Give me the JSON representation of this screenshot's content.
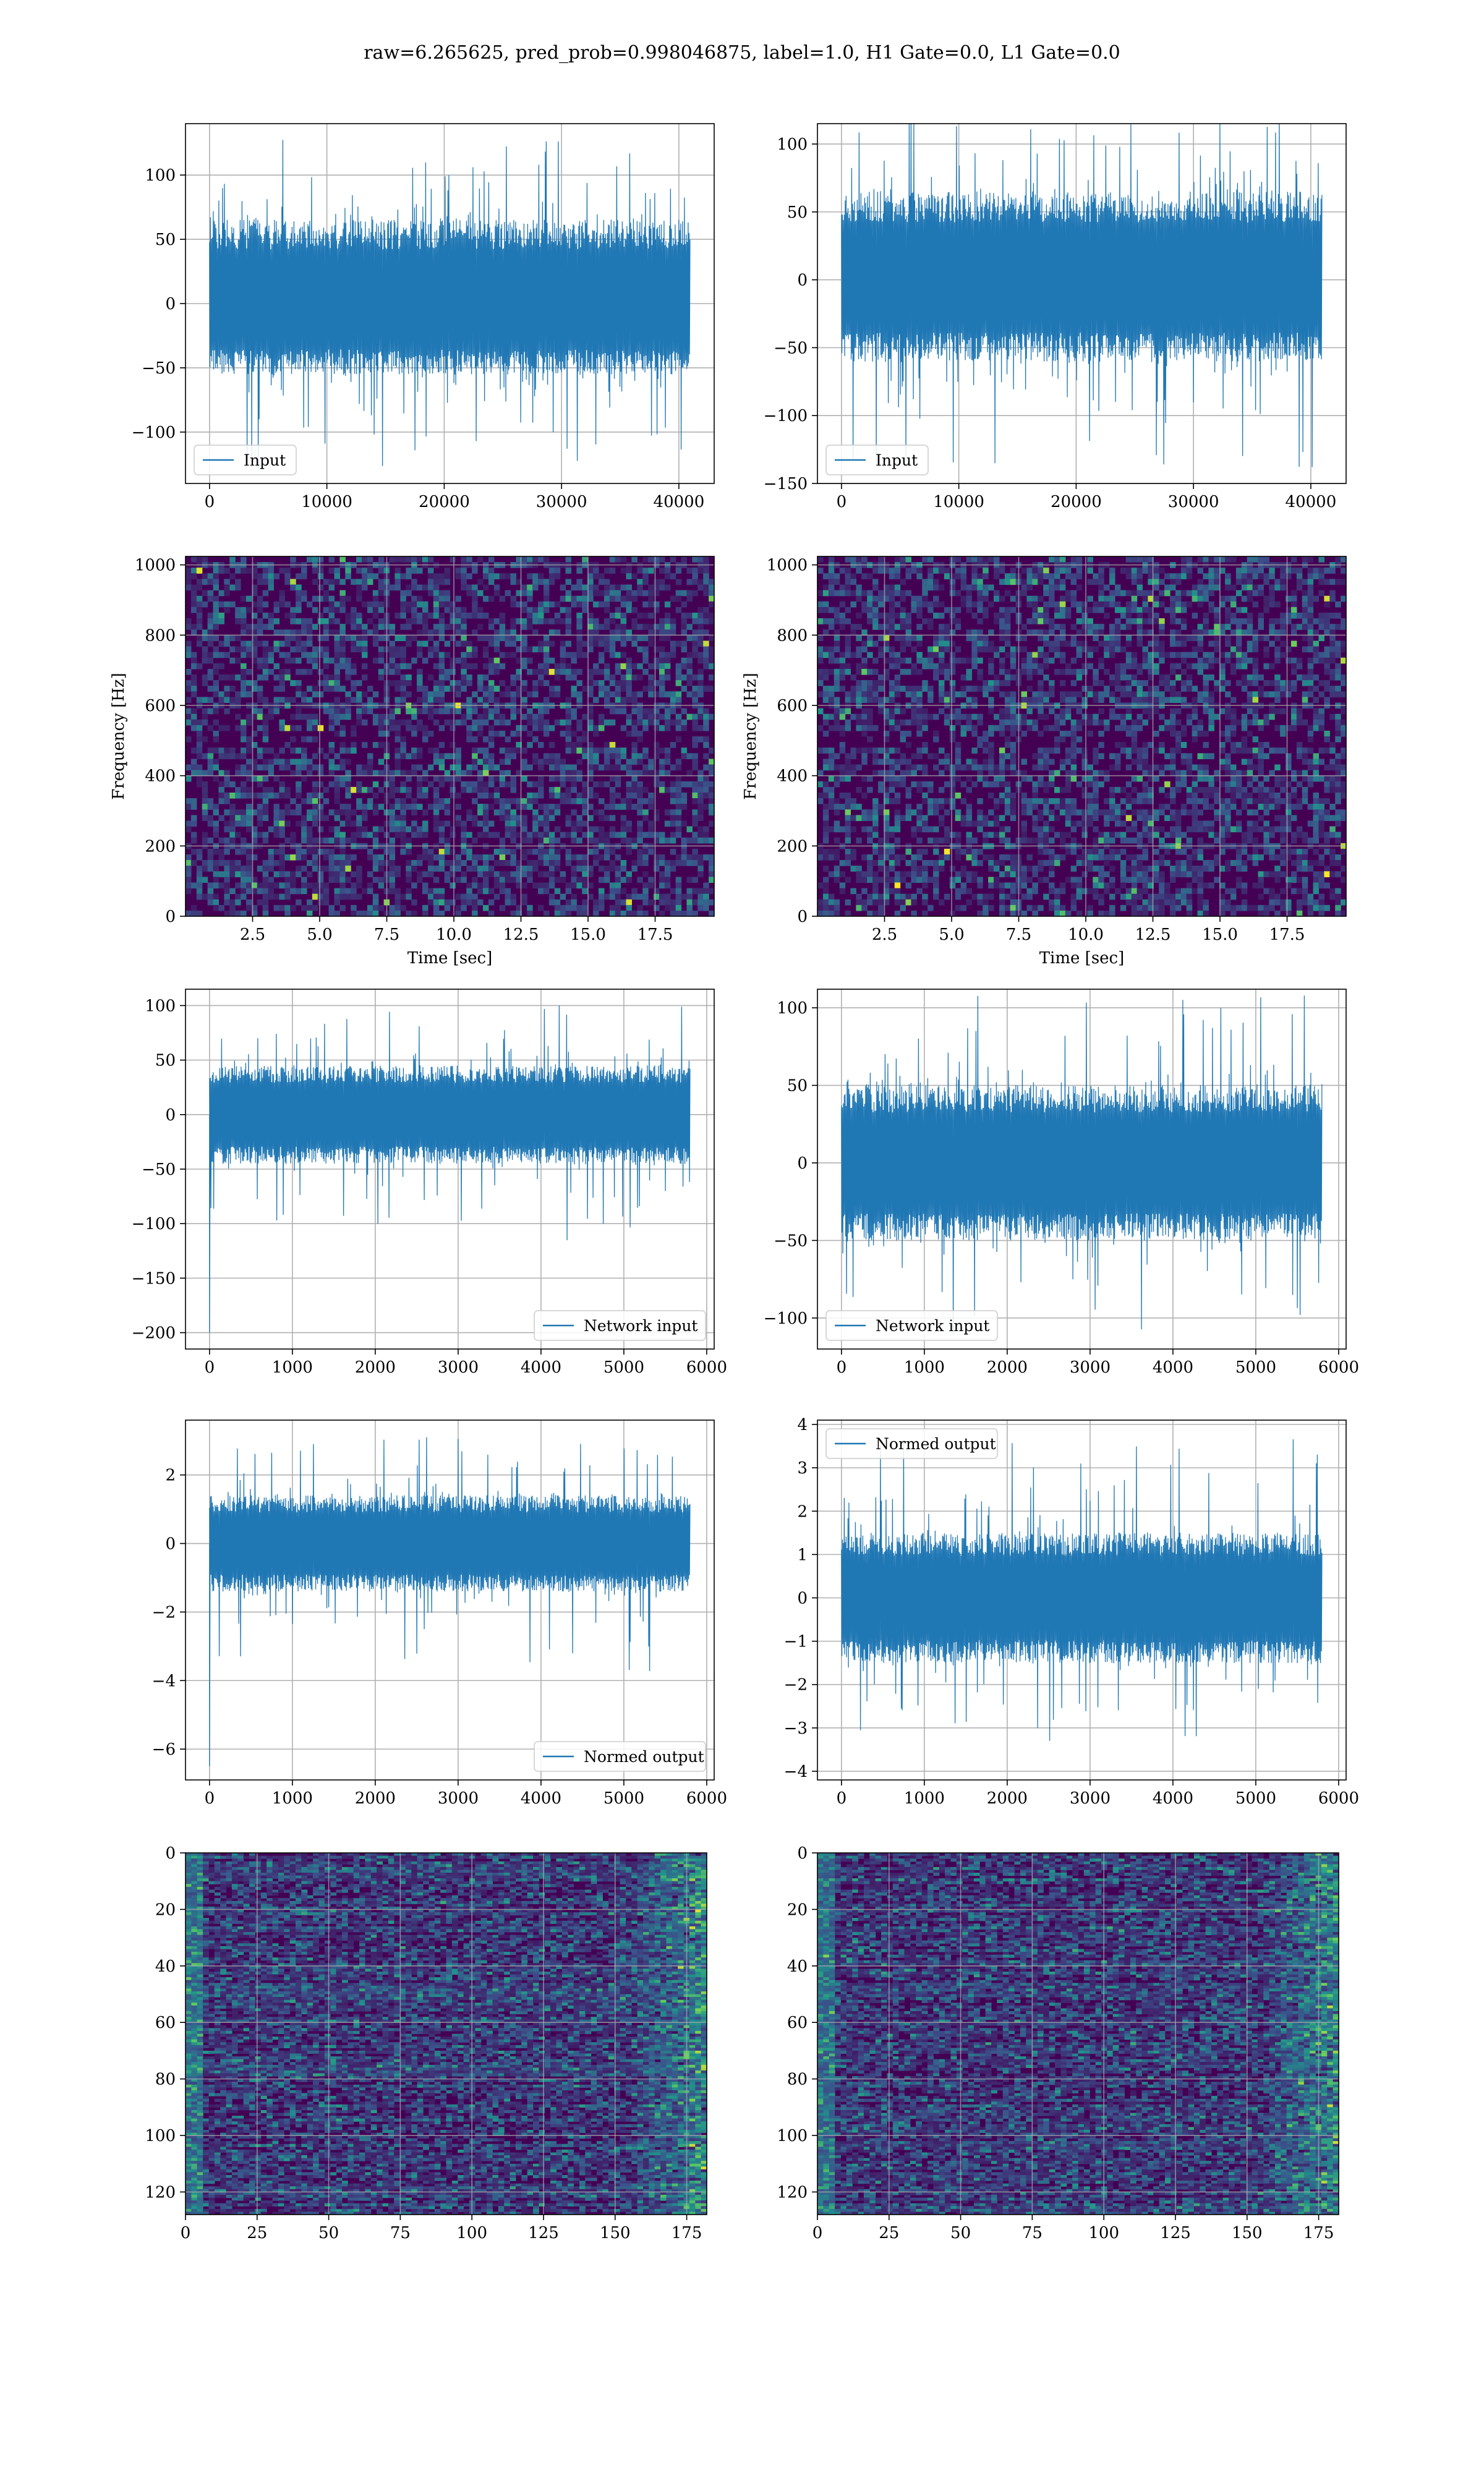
{
  "figure": {
    "suptitle": "raw=6.265625, pred_prob=0.998046875, label=1.0, H1 Gate=0.0, L1 Gate=0.0",
    "colors": {
      "line": "#1f77b4",
      "grid": "#b0b0b0",
      "viridis_dark": "#440154",
      "viridis_mid": "#31688e",
      "viridis_green": "#35b779",
      "viridis_yellow": "#fde725"
    }
  },
  "chart_data": [
    {
      "id": "left_input",
      "type": "line",
      "x_range": [
        0,
        40960
      ],
      "xlim": [
        -2048,
        43008
      ],
      "ylim": [
        -140,
        140
      ],
      "x_ticks": [
        "0",
        "10000",
        "20000",
        "30000",
        "40000"
      ],
      "x_tick_values": [
        0,
        10000,
        20000,
        30000,
        40000
      ],
      "y_ticks": [
        "100",
        "50",
        "0",
        "−50",
        "−100"
      ],
      "y_tick_values": [
        100,
        50,
        0,
        -50,
        -100
      ],
      "series": [
        {
          "name": "Input",
          "band": [
            -55,
            65
          ],
          "peaks": [
            -130,
            130
          ],
          "spike_rate": 0.12,
          "seed": 11,
          "initial_spike": null
        }
      ],
      "legend": "lower left",
      "grid": true,
      "xlabel": "",
      "ylabel": ""
    },
    {
      "id": "right_input",
      "type": "line",
      "x_range": [
        0,
        40960
      ],
      "xlim": [
        -2048,
        43008
      ],
      "ylim": [
        -150,
        115
      ],
      "x_ticks": [
        "0",
        "10000",
        "20000",
        "30000",
        "40000"
      ],
      "x_tick_values": [
        0,
        10000,
        20000,
        30000,
        40000
      ],
      "y_ticks": [
        "100",
        "50",
        "0",
        "−50",
        "−100",
        "−150"
      ],
      "y_tick_values": [
        100,
        50,
        0,
        -50,
        -100,
        -150
      ],
      "series": [
        {
          "name": "Input",
          "band": [
            -60,
            65
          ],
          "peaks": [
            -138,
            127
          ],
          "spike_rate": 0.12,
          "seed": 23,
          "initial_spike": null
        }
      ],
      "legend": "lower left",
      "grid": true,
      "xlabel": "",
      "ylabel": ""
    },
    {
      "id": "left_spectrogram",
      "type": "heatmap",
      "xlim": [
        0,
        19.7
      ],
      "ylim": [
        0,
        1024
      ],
      "x_ticks": [
        "2.5",
        "5.0",
        "7.5",
        "10.0",
        "12.5",
        "15.0",
        "17.5"
      ],
      "x_tick_values": [
        2.5,
        5,
        7.5,
        10,
        12.5,
        15,
        17.5
      ],
      "y_ticks": [
        "1000",
        "800",
        "600",
        "400",
        "200",
        "0"
      ],
      "y_tick_values": [
        1000,
        800,
        600,
        400,
        200,
        0
      ],
      "xlabel": "Time [sec]",
      "ylabel": "Frequency [Hz]",
      "grid": true,
      "colormap": "viridis",
      "seed": 101
    },
    {
      "id": "right_spectrogram",
      "type": "heatmap",
      "xlim": [
        0,
        19.7
      ],
      "ylim": [
        0,
        1024
      ],
      "x_ticks": [
        "2.5",
        "5.0",
        "7.5",
        "10.0",
        "12.5",
        "15.0",
        "17.5"
      ],
      "x_tick_values": [
        2.5,
        5,
        7.5,
        10,
        12.5,
        15,
        17.5
      ],
      "y_ticks": [
        "1000",
        "800",
        "600",
        "400",
        "200",
        "0"
      ],
      "y_tick_values": [
        1000,
        800,
        600,
        400,
        200,
        0
      ],
      "xlabel": "Time [sec]",
      "ylabel": "Frequency [Hz]",
      "grid": true,
      "colormap": "viridis",
      "seed": 202
    },
    {
      "id": "left_network_input",
      "type": "line",
      "x_range": [
        0,
        5800
      ],
      "xlim": [
        -290,
        6090
      ],
      "ylim": [
        -215,
        115
      ],
      "x_ticks": [
        "0",
        "1000",
        "2000",
        "3000",
        "4000",
        "5000",
        "6000"
      ],
      "x_tick_values": [
        0,
        1000,
        2000,
        3000,
        4000,
        5000,
        6000
      ],
      "y_ticks": [
        "100",
        "50",
        "0",
        "−50",
        "−100",
        "−150",
        "−200"
      ],
      "y_tick_values": [
        100,
        50,
        0,
        -50,
        -100,
        -150,
        -200
      ],
      "series": [
        {
          "name": "Network input",
          "band": [
            -45,
            45
          ],
          "peaks": [
            -120,
            100
          ],
          "spike_rate": 0.1,
          "seed": 37,
          "initial_spike": -200
        }
      ],
      "legend": "lower right",
      "grid": true,
      "xlabel": "",
      "ylabel": ""
    },
    {
      "id": "right_network_input",
      "type": "line",
      "x_range": [
        0,
        5800
      ],
      "xlim": [
        -290,
        6090
      ],
      "ylim": [
        -120,
        112
      ],
      "x_ticks": [
        "0",
        "1000",
        "2000",
        "3000",
        "4000",
        "5000",
        "6000"
      ],
      "x_tick_values": [
        0,
        1000,
        2000,
        3000,
        4000,
        5000,
        6000
      ],
      "y_ticks": [
        "100",
        "50",
        "0",
        "−50",
        "−100"
      ],
      "y_tick_values": [
        100,
        50,
        0,
        -50,
        -100
      ],
      "series": [
        {
          "name": "Network input",
          "band": [
            -50,
            50
          ],
          "peaks": [
            -117,
            108
          ],
          "spike_rate": 0.1,
          "seed": 53,
          "initial_spike": null
        }
      ],
      "legend": "lower left",
      "grid": true,
      "xlabel": "",
      "ylabel": ""
    },
    {
      "id": "left_normed_output",
      "type": "line",
      "x_range": [
        0,
        5800
      ],
      "xlim": [
        -290,
        6090
      ],
      "ylim": [
        -6.9,
        3.6
      ],
      "x_ticks": [
        "0",
        "1000",
        "2000",
        "3000",
        "4000",
        "5000",
        "6000"
      ],
      "x_tick_values": [
        0,
        1000,
        2000,
        3000,
        4000,
        5000,
        6000
      ],
      "y_ticks": [
        "2",
        "0",
        "−2",
        "−4",
        "−6"
      ],
      "y_tick_values": [
        2,
        0,
        -2,
        -4,
        -6
      ],
      "series": [
        {
          "name": "Normed output",
          "band": [
            -1.4,
            1.4
          ],
          "peaks": [
            -3.9,
            3.1
          ],
          "spike_rate": 0.1,
          "seed": 71,
          "initial_spike": -6.5
        }
      ],
      "legend": "lower right",
      "grid": true,
      "xlabel": "",
      "ylabel": ""
    },
    {
      "id": "right_normed_output",
      "type": "line",
      "x_range": [
        0,
        5800
      ],
      "xlim": [
        -290,
        6090
      ],
      "ylim": [
        -4.2,
        4.1
      ],
      "x_ticks": [
        "0",
        "1000",
        "2000",
        "3000",
        "4000",
        "5000",
        "6000"
      ],
      "x_tick_values": [
        0,
        1000,
        2000,
        3000,
        4000,
        5000,
        6000
      ],
      "y_ticks": [
        "4",
        "3",
        "2",
        "1",
        "0",
        "−1",
        "−2",
        "−3",
        "−4"
      ],
      "y_tick_values": [
        4,
        3,
        2,
        1,
        0,
        -1,
        -2,
        -3,
        -4
      ],
      "series": [
        {
          "name": "Normed output",
          "band": [
            -1.5,
            1.5
          ],
          "peaks": [
            -3.7,
            3.7
          ],
          "spike_rate": 0.1,
          "seed": 89,
          "initial_spike": null
        }
      ],
      "legend": "upper left",
      "grid": true,
      "xlabel": "",
      "ylabel": ""
    },
    {
      "id": "left_feature_map",
      "type": "heatmap",
      "xlim": [
        0,
        182
      ],
      "ylim": [
        0,
        128
      ],
      "y_inverted": true,
      "x_ticks": [
        "0",
        "25",
        "50",
        "75",
        "100",
        "125",
        "150",
        "175"
      ],
      "x_tick_values": [
        0,
        25,
        50,
        75,
        100,
        125,
        150,
        175
      ],
      "y_ticks": [
        "0",
        "20",
        "40",
        "60",
        "80",
        "100",
        "120"
      ],
      "y_tick_values": [
        0,
        20,
        40,
        60,
        80,
        100,
        120
      ],
      "xlabel": "",
      "ylabel": "",
      "grid": true,
      "colormap": "viridis",
      "seed": 303
    },
    {
      "id": "right_feature_map",
      "type": "heatmap",
      "xlim": [
        0,
        182
      ],
      "ylim": [
        0,
        128
      ],
      "y_inverted": true,
      "x_ticks": [
        "0",
        "25",
        "50",
        "75",
        "100",
        "125",
        "150",
        "175"
      ],
      "x_tick_values": [
        0,
        25,
        50,
        75,
        100,
        125,
        150,
        175
      ],
      "y_ticks": [
        "0",
        "20",
        "40",
        "60",
        "80",
        "100",
        "120"
      ],
      "y_tick_values": [
        0,
        20,
        40,
        60,
        80,
        100,
        120
      ],
      "xlabel": "",
      "ylabel": "",
      "grid": true,
      "colormap": "viridis",
      "seed": 404
    }
  ]
}
